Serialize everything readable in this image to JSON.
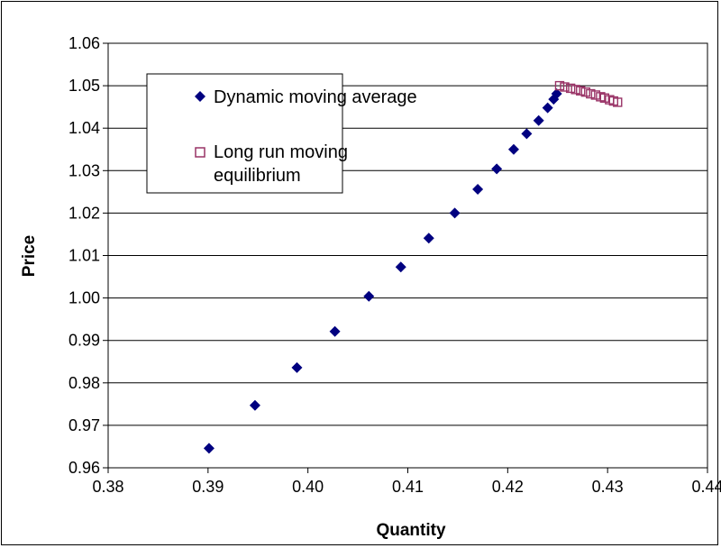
{
  "chart_data": {
    "type": "scatter",
    "xlabel": "Quantity",
    "ylabel": "Price",
    "xlim": [
      0.38,
      0.44
    ],
    "ylim": [
      0.96,
      1.06
    ],
    "xticks": [
      "0.38",
      "0.39",
      "0.40",
      "0.41",
      "0.42",
      "0.43",
      "0.44"
    ],
    "yticks": [
      "0.96",
      "0.97",
      "0.98",
      "0.99",
      "1.00",
      "1.01",
      "1.02",
      "1.03",
      "1.04",
      "1.05",
      "1.06"
    ],
    "grid": "horizontal",
    "legend_position": "top-left",
    "series": [
      {
        "name": "Dynamic moving average",
        "marker": "diamond",
        "color": "#000080",
        "x": [
          0.3901,
          0.3947,
          0.3989,
          0.4027,
          0.4061,
          0.4093,
          0.4121,
          0.4147,
          0.417,
          0.4189,
          0.4206,
          0.4219,
          0.4231,
          0.424,
          0.4246,
          0.4249
        ],
        "y": [
          0.9646,
          0.9747,
          0.9836,
          0.9921,
          1.0004,
          1.0073,
          1.0141,
          1.02,
          1.0256,
          1.0304,
          1.035,
          1.0387,
          1.0418,
          1.0448,
          1.0468,
          1.0481
        ]
      },
      {
        "name": "Long run moving equilibrium",
        "marker": "square-open",
        "color": "#993366",
        "x": [
          0.4252,
          0.4257,
          0.4263,
          0.4268,
          0.4273,
          0.4278,
          0.4283,
          0.4288,
          0.4293,
          0.4297,
          0.4302,
          0.4306,
          0.431
        ],
        "y": [
          1.05,
          1.0497,
          1.0494,
          1.0491,
          1.0488,
          1.0485,
          1.0481,
          1.0478,
          1.0474,
          1.0471,
          1.0467,
          1.0464,
          1.0461
        ]
      }
    ]
  }
}
